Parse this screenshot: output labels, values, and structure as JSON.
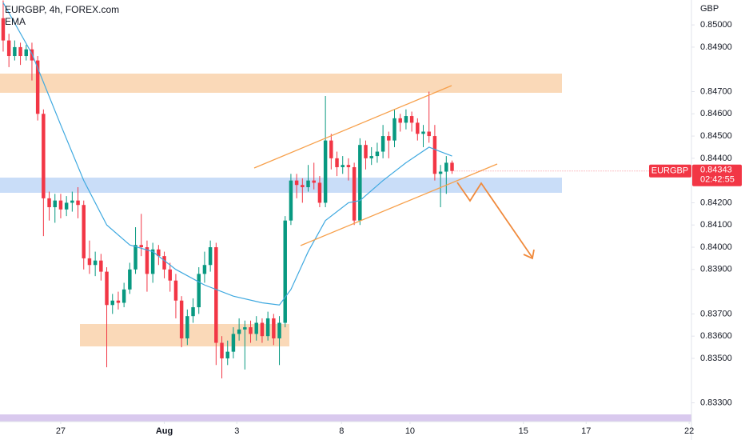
{
  "chart_data": {
    "type": "candlestick",
    "title": "EURGBP, 4h, FOREX.com",
    "currency": "GBP",
    "symbol": "EURGBP",
    "countdown": "02:42:55",
    "up_color": "#089981",
    "down_color": "#f23645",
    "open": [
      0.8503,
      0.8493,
      0.8486,
      0.849,
      0.8486,
      0.8489,
      0.8484,
      0.846,
      0.8422,
      0.8418,
      0.8421,
      0.8417,
      0.842,
      0.8421,
      0.8419,
      0.8395,
      0.8392,
      0.8394,
      0.8389,
      0.8374,
      0.8376,
      0.8375,
      0.8381,
      0.839,
      0.8401,
      0.84,
      0.8388,
      0.8399,
      0.8396,
      0.839,
      0.8385,
      0.8376,
      0.8359,
      0.8369,
      0.8373,
      0.8388,
      0.8392,
      0.84,
      0.8357,
      0.835,
      0.8353,
      0.8361,
      0.8363,
      0.8364,
      0.8361,
      0.8366,
      0.836,
      0.8368,
      0.8359,
      0.8366,
      0.8412,
      0.843,
      0.8428,
      0.8427,
      0.843,
      0.8429,
      0.842,
      0.8448,
      0.844,
      0.8436,
      0.8437,
      0.8436,
      0.8412,
      0.8446,
      0.844,
      0.8441,
      0.8443,
      0.845,
      0.8448,
      0.8458,
      0.8456,
      0.8459,
      0.8456,
      0.8451,
      0.8452,
      0.845,
      0.8433,
      0.8434,
      0.8438
    ],
    "high": [
      0.8511,
      0.8496,
      0.8493,
      0.8492,
      0.8491,
      0.8492,
      0.8486,
      0.8462,
      0.8425,
      0.8424,
      0.8424,
      0.8423,
      0.8425,
      0.8427,
      0.8421,
      0.8403,
      0.8398,
      0.8397,
      0.8391,
      0.8379,
      0.838,
      0.8384,
      0.8393,
      0.8409,
      0.8415,
      0.8403,
      0.8402,
      0.8401,
      0.8398,
      0.8393,
      0.8388,
      0.8378,
      0.8372,
      0.8377,
      0.8391,
      0.8398,
      0.8403,
      0.8402,
      0.836,
      0.8358,
      0.8364,
      0.8368,
      0.8367,
      0.8367,
      0.8369,
      0.8368,
      0.8371,
      0.837,
      0.8369,
      0.8414,
      0.8433,
      0.8433,
      0.8431,
      0.8437,
      0.8438,
      0.8432,
      0.8468,
      0.8451,
      0.8443,
      0.8441,
      0.844,
      0.8438,
      0.8449,
      0.8448,
      0.8445,
      0.8447,
      0.8455,
      0.8452,
      0.8462,
      0.846,
      0.8462,
      0.8461,
      0.8458,
      0.8455,
      0.847,
      0.8455,
      0.8437,
      0.8441,
      0.8439
    ],
    "low": [
      0.8488,
      0.8481,
      0.8484,
      0.8482,
      0.8484,
      0.8475,
      0.8457,
      0.8405,
      0.8412,
      0.8411,
      0.8413,
      0.8414,
      0.8416,
      0.8413,
      0.839,
      0.8388,
      0.8387,
      0.8385,
      0.8346,
      0.837,
      0.8372,
      0.8373,
      0.8379,
      0.8388,
      0.8396,
      0.838,
      0.8384,
      0.8392,
      0.8386,
      0.838,
      0.8368,
      0.8355,
      0.8356,
      0.8366,
      0.837,
      0.8384,
      0.8389,
      0.8347,
      0.8341,
      0.8347,
      0.835,
      0.8358,
      0.8345,
      0.8357,
      0.8358,
      0.8357,
      0.8358,
      0.8356,
      0.8347,
      0.8364,
      0.841,
      0.8422,
      0.842,
      0.8425,
      0.8426,
      0.8418,
      0.8418,
      0.8435,
      0.8432,
      0.8433,
      0.843,
      0.841,
      0.841,
      0.8435,
      0.8437,
      0.8438,
      0.844,
      0.844,
      0.8445,
      0.8452,
      0.8453,
      0.8452,
      0.8448,
      0.8445,
      0.8447,
      0.843,
      0.8418,
      0.8424,
      0.8433
    ],
    "close": [
      0.8493,
      0.8486,
      0.849,
      0.8486,
      0.8489,
      0.8484,
      0.846,
      0.8422,
      0.8418,
      0.8421,
      0.8417,
      0.842,
      0.8421,
      0.8419,
      0.8395,
      0.8392,
      0.8394,
      0.8389,
      0.8374,
      0.8376,
      0.8375,
      0.8381,
      0.839,
      0.8401,
      0.84,
      0.8388,
      0.8399,
      0.8396,
      0.839,
      0.8385,
      0.8376,
      0.8359,
      0.8369,
      0.8373,
      0.8388,
      0.8392,
      0.84,
      0.8357,
      0.835,
      0.8353,
      0.8361,
      0.8363,
      0.8364,
      0.8361,
      0.8366,
      0.836,
      0.8368,
      0.8359,
      0.8366,
      0.8412,
      0.843,
      0.8428,
      0.8427,
      0.843,
      0.8429,
      0.842,
      0.8448,
      0.844,
      0.8436,
      0.8437,
      0.8436,
      0.8412,
      0.8446,
      0.844,
      0.8441,
      0.8443,
      0.845,
      0.8448,
      0.8458,
      0.8456,
      0.8459,
      0.8456,
      0.8451,
      0.8452,
      0.845,
      0.8433,
      0.8434,
      0.8438,
      0.84343
    ],
    "series": [
      {
        "name": "EMA",
        "color": "#3fa9e0",
        "x": [
          0,
          5,
          10,
          14,
          18,
          22,
          26,
          30,
          35,
          40,
          45,
          48,
          50,
          53,
          56,
          60,
          62,
          66,
          70,
          74,
          76,
          78
        ],
        "values": [
          0.851,
          0.8487,
          0.8455,
          0.843,
          0.841,
          0.8401,
          0.8398,
          0.839,
          0.8383,
          0.8378,
          0.8375,
          0.8374,
          0.8381,
          0.8398,
          0.8412,
          0.842,
          0.8421,
          0.843,
          0.8438,
          0.8445,
          0.8443,
          0.8441
        ]
      }
    ],
    "xlim": [
      -0.55,
      119.6
    ],
    "xticks": [
      {
        "value": 10,
        "label": "27"
      },
      {
        "value": 28,
        "label": "Aug"
      },
      {
        "value": 40.6,
        "label": "3"
      },
      {
        "value": 58.8,
        "label": "8"
      },
      {
        "value": 70.7,
        "label": "10"
      },
      {
        "value": 90.4,
        "label": "15"
      },
      {
        "value": 101.3,
        "label": "17"
      },
      {
        "value": 119.2,
        "label": "22"
      }
    ],
    "ylim": [
      0.83248,
      0.85112
    ],
    "yticks": [
      {
        "value": 0.85,
        "label": "0.85000"
      },
      {
        "value": 0.849,
        "label": "0.84900"
      },
      {
        "value": 0.847,
        "label": "0.84700"
      },
      {
        "value": 0.846,
        "label": "0.84600"
      },
      {
        "value": 0.845,
        "label": "0.84500"
      },
      {
        "value": 0.844,
        "label": "0.84400"
      },
      {
        "value": 0.842,
        "label": "0.84200"
      },
      {
        "value": 0.841,
        "label": "0.84100"
      },
      {
        "value": 0.84,
        "label": "0.84000"
      },
      {
        "value": 0.839,
        "label": "0.83900"
      },
      {
        "value": 0.837,
        "label": "0.83700"
      },
      {
        "value": 0.836,
        "label": "0.83600"
      },
      {
        "value": 0.835,
        "label": "0.83500"
      },
      {
        "value": 0.833,
        "label": "0.83300"
      }
    ],
    "grid": false
  }
}
